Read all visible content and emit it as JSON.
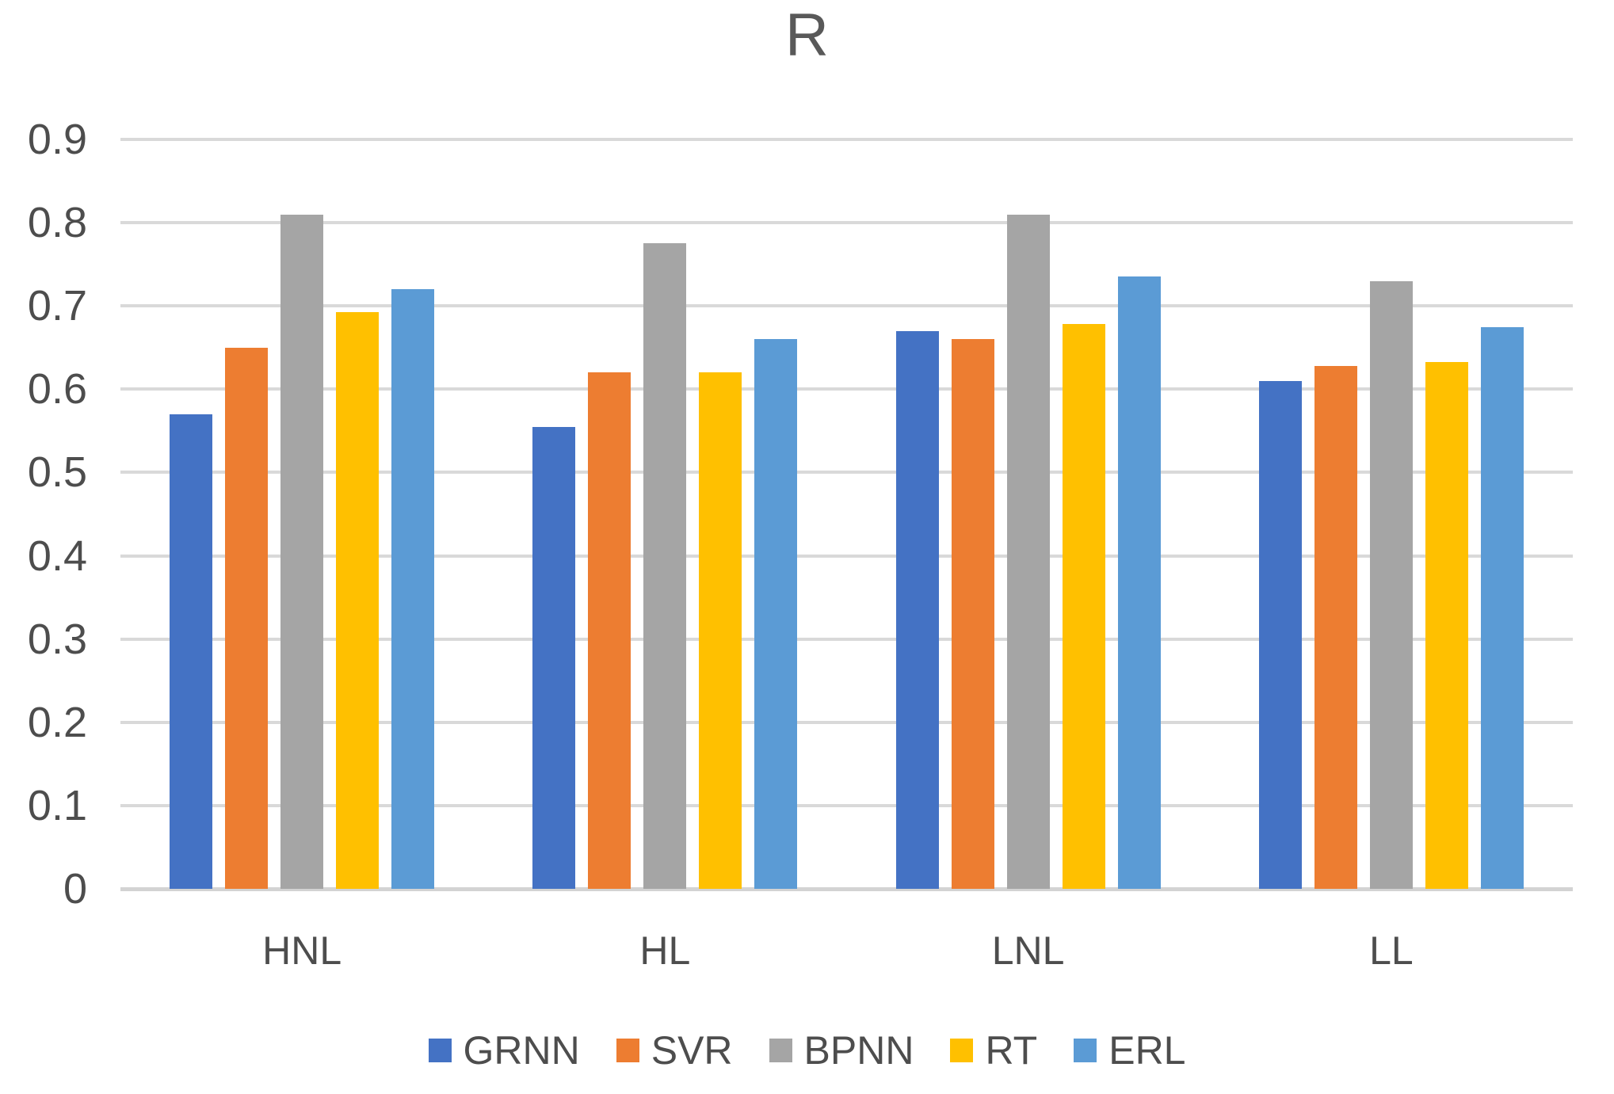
{
  "title": "R",
  "chart_data": {
    "type": "bar",
    "title": "R",
    "categories": [
      "HNL",
      "HL",
      "LNL",
      "LL"
    ],
    "series": [
      {
        "name": "GRNN",
        "color": "#4472C4",
        "values": [
          0.57,
          0.555,
          0.67,
          0.61
        ]
      },
      {
        "name": "SVR",
        "color": "#ED7D31",
        "values": [
          0.65,
          0.62,
          0.66,
          0.628
        ]
      },
      {
        "name": "BPNN",
        "color": "#A5A5A5",
        "values": [
          0.81,
          0.775,
          0.81,
          0.73
        ]
      },
      {
        "name": "RT",
        "color": "#FFC000",
        "values": [
          0.693,
          0.62,
          0.678,
          0.633
        ]
      },
      {
        "name": "ERL",
        "color": "#5B9BD5",
        "values": [
          0.72,
          0.66,
          0.735,
          0.675
        ]
      }
    ],
    "xlabel": "",
    "ylabel": "",
    "ylim": [
      0,
      0.9
    ],
    "ytick_labels": [
      "0.9",
      "0.8",
      "0.7",
      "0.6",
      "0.5",
      "0.4",
      "0.3",
      "0.2",
      "0.1",
      "0"
    ],
    "ytick_values": [
      0.9,
      0.8,
      0.7,
      0.6,
      0.5,
      0.4,
      0.3,
      0.2,
      0.1,
      0
    ],
    "grid": true,
    "legend_position": "bottom",
    "colors": {
      "text": "#4d4d4d",
      "title_text": "#595959",
      "gridline": "#d9d9d9",
      "background": "#ffffff"
    }
  }
}
